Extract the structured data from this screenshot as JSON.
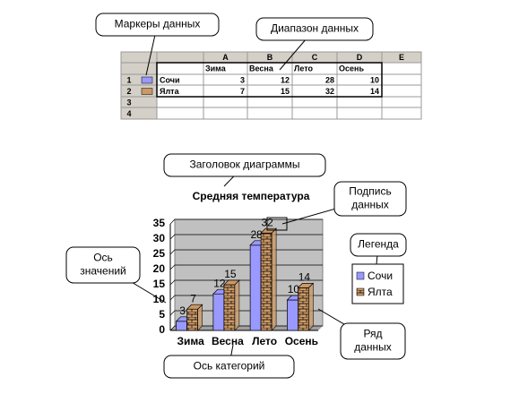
{
  "callouts": {
    "markers": "Маркеры данных",
    "range": "Диапазон данных",
    "title": "Заголовок диаграммы",
    "data_label": [
      "Подпись",
      "данных"
    ],
    "legend": "Легенда",
    "value_axis": [
      "Ось",
      "значений"
    ],
    "series": [
      "Ряд",
      "данных"
    ],
    "category_axis": "Ось категорий"
  },
  "sheet": {
    "columns": [
      "A",
      "B",
      "C",
      "D",
      "E"
    ],
    "header": [
      "Зима",
      "Весна",
      "Лето",
      "Осень"
    ],
    "row_numbers": [
      "1",
      "2",
      "3",
      "4"
    ],
    "rows": [
      {
        "name": "Сочи",
        "values": [
          3,
          12,
          28,
          10
        ]
      },
      {
        "name": "Ялта",
        "values": [
          7,
          15,
          32,
          14
        ]
      }
    ]
  },
  "chart_data": {
    "type": "bar",
    "title": "Средняя температура",
    "categories": [
      "Зима",
      "Весна",
      "Лето",
      "Осень"
    ],
    "series": [
      {
        "name": "Сочи",
        "color": "#9999ff",
        "values": [
          3,
          12,
          28,
          10
        ]
      },
      {
        "name": "Ялта",
        "color": "#cc9966",
        "values": [
          7,
          15,
          32,
          14
        ]
      }
    ],
    "ylim": [
      0,
      35
    ],
    "yticks": [
      0,
      5,
      10,
      15,
      20,
      25,
      30,
      35
    ],
    "grid": true
  }
}
